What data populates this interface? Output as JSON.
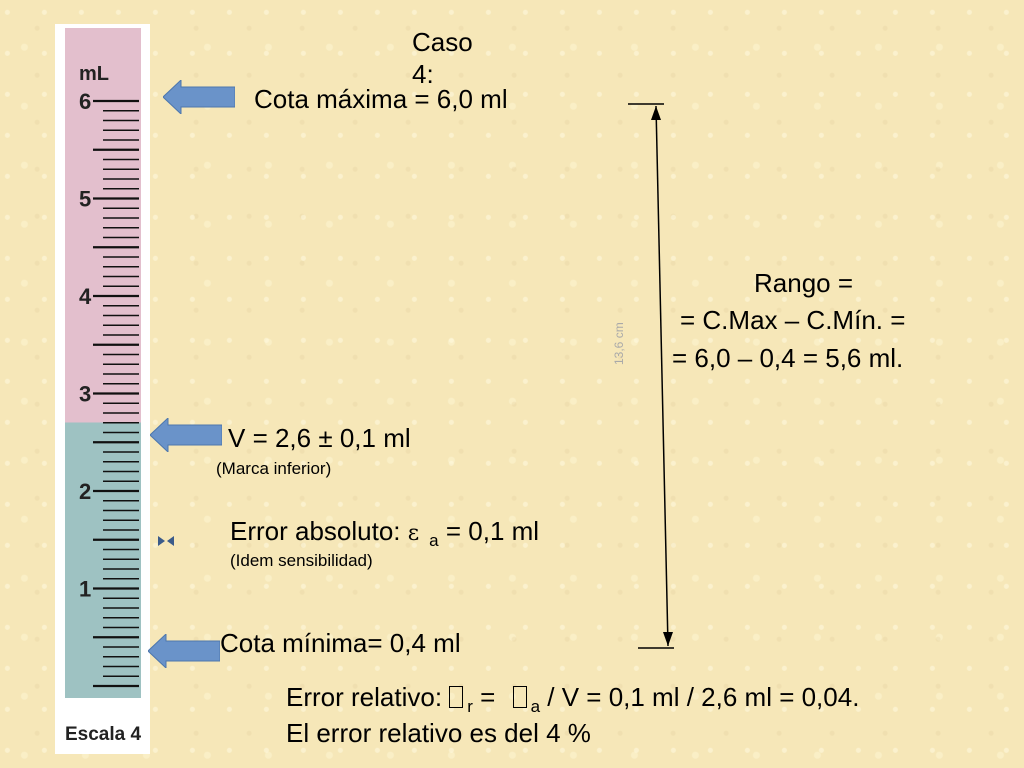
{
  "title": "Caso 4:",
  "cylinder": {
    "unit": "mL",
    "scale_label": "Escala 4",
    "major_labels": [
      "6",
      "5",
      "4",
      "3",
      "2",
      "1"
    ],
    "liquid_level_ml": 2.6,
    "max_ml": 6.0,
    "top_color": "#e3bfcd",
    "liquid_color": "#9ec2c2"
  },
  "cota_maxima": "Cota máxima = 6,0 ml",
  "volume": {
    "value": "V = 2,6 ± 0,1 ml",
    "note": "(Marca inferior)"
  },
  "error_absoluto": {
    "prefix": "Error absoluto: ",
    "symbol": "ε",
    "sub": "a",
    "suffix": " =  0,1 ml",
    "note": "(Idem sensibilidad)"
  },
  "cota_minima": "Cota mínima=  0,4 ml",
  "error_relativo": {
    "prefix": "Error relativo: ",
    "symbol1": "",
    "sub1": "r",
    "eq": " = ",
    "symbol2": "",
    "sub2": "a",
    "suffix": " / V = 0,1 ml / 2,6 ml = 0,04.",
    "conclusion": "El error relativo es del 4 %"
  },
  "rango": {
    "line1": "Rango =",
    "line2": "= C.Max – C.Mín. =",
    "line3": "= 6,0 – 0,4 = 5,6 ml."
  },
  "dimension_label": "13,6 cm",
  "arrow_color": "#6a93c9"
}
